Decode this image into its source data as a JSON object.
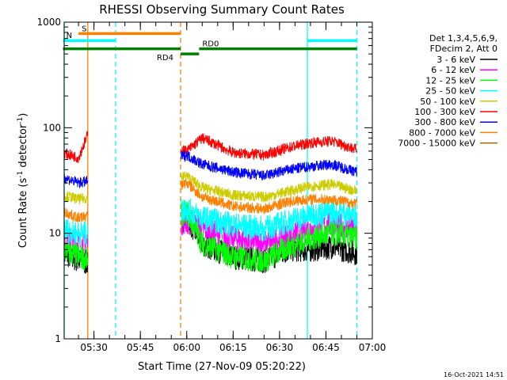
{
  "chart_data": {
    "type": "line",
    "title": "RHESSI Observing Summary Count Rates",
    "xlabel": "Start Time (27-Nov-09 05:20:22)",
    "ylabel": "Count Rate (s",
    "ylabel_sup": "-1",
    "ylabel_tail": " detector",
    "ylabel_close": ")",
    "y_scale": "log",
    "ylim": [
      1,
      1000
    ],
    "xlim": [
      "05:20:22",
      "07:00:00"
    ],
    "x_ticks": [
      "05:30",
      "05:45",
      "06:00",
      "06:15",
      "06:30",
      "06:45",
      "07:00"
    ],
    "y_ticks": [
      "1",
      "10",
      "100",
      "1000"
    ],
    "legend": {
      "placement": "right",
      "header": [
        "Det 1,3,4,5,6,9,",
        "FDecim 2, Att 0"
      ]
    },
    "series": [
      {
        "name": "3 - 6 keV",
        "color": "#000000",
        "x": [
          "05:20",
          "05:25",
          "05:30",
          "05:60",
          "06:05",
          "06:15",
          "06:25",
          "06:33",
          "06:40",
          "06:47",
          "06:55"
        ],
        "values": [
          6.5,
          5.5,
          5,
          14,
          8,
          6,
          5.5,
          7,
          7,
          7.5,
          6.5
        ]
      },
      {
        "name": "6 - 12 keV",
        "color": "#ff00ff",
        "x": [
          "05:20",
          "05:25",
          "05:30",
          "05:60",
          "06:05",
          "06:15",
          "06:25",
          "06:33",
          "06:40",
          "06:47",
          "06:55"
        ],
        "values": [
          9,
          8,
          8,
          13,
          11,
          9,
          8,
          9.5,
          11,
          12,
          11
        ]
      },
      {
        "name": "12 - 25 keV",
        "color": "#00ff00",
        "x": [
          "05:20",
          "05:25",
          "05:30",
          "05:60",
          "06:05",
          "06:15",
          "06:25",
          "06:33",
          "06:40",
          "06:47",
          "06:55"
        ],
        "values": [
          7,
          6,
          5.5,
          16,
          8,
          6,
          5.5,
          7.5,
          9,
          10,
          9
        ]
      },
      {
        "name": "25 - 50 keV",
        "color": "#00ffff",
        "x": [
          "05:20",
          "05:25",
          "05:30",
          "05:60",
          "06:05",
          "06:15",
          "06:25",
          "06:33",
          "06:40",
          "06:47",
          "06:55"
        ],
        "values": [
          11,
          10,
          10,
          17,
          14,
          12,
          11,
          13,
          15,
          16,
          15
        ]
      },
      {
        "name": "50 - 100 keV",
        "color": "#cccc00",
        "x": [
          "05:20",
          "05:25",
          "05:30",
          "05:60",
          "06:05",
          "06:15",
          "06:25",
          "06:33",
          "06:40",
          "06:47",
          "06:55"
        ],
        "values": [
          23,
          21,
          22,
          35,
          27,
          23,
          22,
          25,
          28,
          29,
          25
        ]
      },
      {
        "name": "100 - 300 keV",
        "color": "#ff0000",
        "x": [
          "05:20",
          "05:25",
          "05:30",
          "05:60",
          "06:05",
          "06:15",
          "06:25",
          "06:33",
          "06:40",
          "06:47",
          "06:55"
        ],
        "values": [
          58,
          52,
          120,
          60,
          80,
          58,
          55,
          65,
          72,
          75,
          62
        ]
      },
      {
        "name": "300 - 800 keV",
        "color": "#0000ff",
        "x": [
          "05:20",
          "05:25",
          "05:30",
          "05:60",
          "06:05",
          "06:15",
          "06:25",
          "06:33",
          "06:40",
          "06:47",
          "06:55"
        ],
        "values": [
          34,
          30,
          32,
          55,
          45,
          38,
          35,
          40,
          43,
          45,
          38
        ]
      },
      {
        "name": "800 - 7000 keV",
        "color": "#ff8000",
        "x": [
          "05:20",
          "05:25",
          "05:30",
          "05:60",
          "06:05",
          "06:15",
          "06:25",
          "06:33",
          "06:40",
          "06:47",
          "06:55"
        ],
        "values": [
          16,
          14,
          15,
          30,
          22,
          18,
          17,
          20,
          21,
          21,
          19
        ]
      },
      {
        "name": "7000 - 15000 keV",
        "color": "#996600",
        "x": [],
        "values": []
      }
    ],
    "state_bars": [
      {
        "label": "S",
        "color": "#ff8000",
        "level": 780,
        "from": "05:25",
        "to": "05:58"
      },
      {
        "label": "N",
        "color": "#00ffff",
        "level": 670,
        "from": "05:20",
        "to": "05:37"
      },
      {
        "label": "",
        "color": "#00ffff",
        "level": 670,
        "from": "06:39",
        "to": "06:55"
      },
      {
        "label": "RD0",
        "color": "#008000",
        "level": 560,
        "from": "06:04",
        "to": "06:55"
      },
      {
        "label": "",
        "color": "#008000",
        "level": 560,
        "from": "05:20",
        "to": "05:58"
      },
      {
        "label": "RD4",
        "color": "#008000",
        "level": 500,
        "from": "05:58",
        "to": "06:04"
      }
    ],
    "vertical_lines": [
      {
        "x": "05:20:22",
        "color": "#00ffff",
        "style": "solid"
      },
      {
        "x": "05:28",
        "color": "#ff8000",
        "style": "solid"
      },
      {
        "x": "05:37",
        "color": "#00ffff",
        "style": "dashed"
      },
      {
        "x": "05:58",
        "color": "#ff8000",
        "style": "dashed"
      },
      {
        "x": "06:39",
        "color": "#00ffff",
        "style": "solid"
      },
      {
        "x": "06:55",
        "color": "#00ffff",
        "style": "dashed"
      }
    ],
    "footer_date": "16-Oct-2021 14:51"
  }
}
